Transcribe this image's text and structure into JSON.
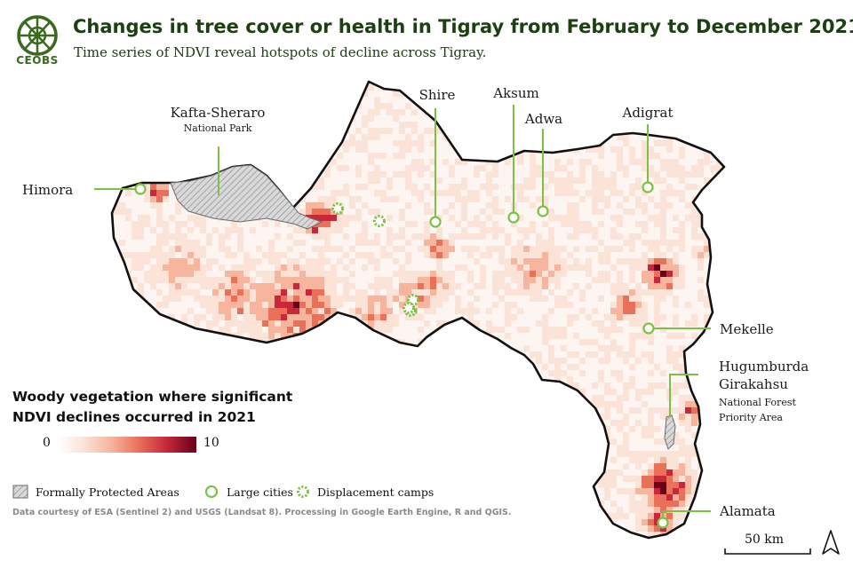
{
  "header": {
    "logo_text": "CEOBS",
    "title": "Changes in tree cover or health in Tigray from February to December 2021",
    "subtitle": "Time series of NDVI reveal hotspots of decline across Tigray."
  },
  "map": {
    "places": [
      {
        "id": "himora",
        "name": "Himora",
        "type": "large-city"
      },
      {
        "id": "kafta",
        "name": "Kafta-Sheraro",
        "sub": "National Park",
        "type": "protected-area"
      },
      {
        "id": "shire",
        "name": "Shire",
        "type": "large-city"
      },
      {
        "id": "aksum",
        "name": "Aksum",
        "type": "large-city"
      },
      {
        "id": "adwa",
        "name": "Adwa",
        "type": "large-city"
      },
      {
        "id": "adigrat",
        "name": "Adigrat",
        "type": "large-city"
      },
      {
        "id": "mekelle",
        "name": "Mekelle",
        "type": "large-city"
      },
      {
        "id": "hugum",
        "name": "Hugumburda",
        "name2": "Girakahsu",
        "sub": "National Forest",
        "sub2": "Priority Area",
        "type": "protected-area"
      },
      {
        "id": "alamata",
        "name": "Alamata",
        "type": "large-city"
      }
    ],
    "displacement_camp_count": 5
  },
  "legend": {
    "title_line1": "Woody vegetation where significant",
    "title_line2": "NDVI declines occurred in 2021",
    "scale_min": "0",
    "scale_max": "10",
    "color_scale": [
      "#ffffff",
      "#fbe3d8",
      "#f6b59c",
      "#e9715a",
      "#c8283a",
      "#670217"
    ],
    "protected_label": "Formally Protected Areas",
    "city_label": "Large cities",
    "camp_label": "Displacement camps",
    "city_color": "#7cc242"
  },
  "credits": "Data courtesy of ESA (Sentinel 2) and USGS (Landsat 8). Processing in Google Earth Engine, R and QGIS.",
  "scalebar": {
    "label": "50 km"
  }
}
